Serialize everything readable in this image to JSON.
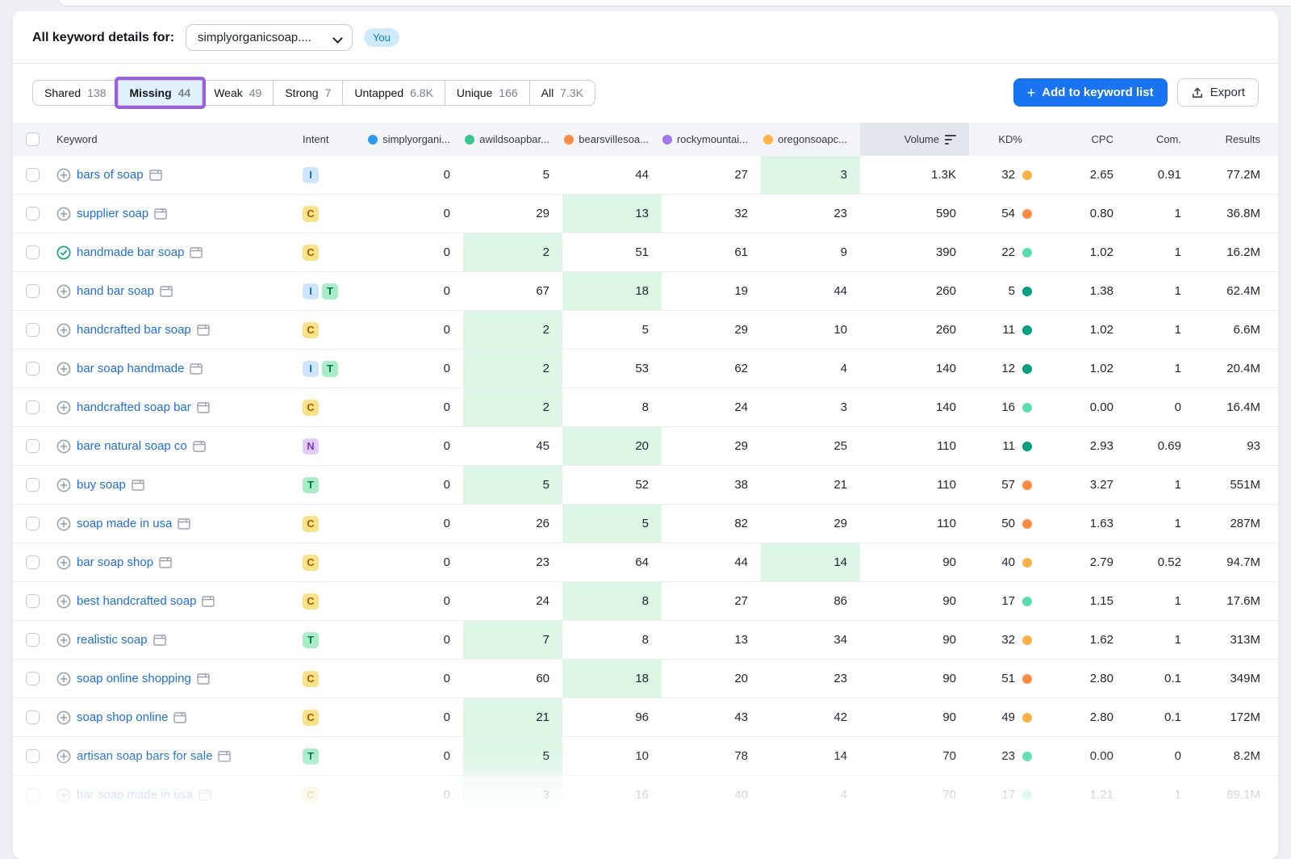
{
  "header": {
    "title": "All keyword details for:",
    "domain_selector": "simplyorganicsoap....",
    "you_badge": "You"
  },
  "tabs": [
    {
      "label": "Shared",
      "count": "138",
      "active": false,
      "annotated": false
    },
    {
      "label": "Missing",
      "count": "44",
      "active": true,
      "annotated": true
    },
    {
      "label": "Weak",
      "count": "49",
      "active": false,
      "annotated": false
    },
    {
      "label": "Strong",
      "count": "7",
      "active": false,
      "annotated": false
    },
    {
      "label": "Untapped",
      "count": "6.8K",
      "active": false,
      "annotated": false
    },
    {
      "label": "Unique",
      "count": "166",
      "active": false,
      "annotated": false
    },
    {
      "label": "All",
      "count": "7.3K",
      "active": false,
      "annotated": false
    }
  ],
  "actions": {
    "add_to_list": "Add to keyword list",
    "export": "Export"
  },
  "colors": {
    "annotation_purple": "#9d5ee2",
    "primary_button_blue": "#1974f2",
    "best_position_green_bg": "#ddf6e6",
    "link_blue": "#1f6fd9"
  },
  "table": {
    "columns": {
      "keyword": "Keyword",
      "intent": "Intent",
      "volume": "Volume",
      "kd": "KD%",
      "cpc": "CPC",
      "com": "Com.",
      "results": "Results"
    },
    "sorted_column": "Volume",
    "competitors": [
      {
        "name": "simplyorgani...",
        "color": "#2e9bf0"
      },
      {
        "name": "awildsoapbar...",
        "color": "#3dc48f"
      },
      {
        "name": "bearsvillesoa...",
        "color": "#ff8c43"
      },
      {
        "name": "rockymountai...",
        "color": "#a673ef"
      },
      {
        "name": "oregonsoapc...",
        "color": "#ffb545"
      }
    ],
    "intent_styles": {
      "I": {
        "label": "I",
        "bg": "#cfe5fb",
        "fg": "#1f6ac1"
      },
      "C": {
        "label": "C",
        "bg": "#fbe189",
        "fg": "#9a6700"
      },
      "T": {
        "label": "T",
        "bg": "#a9ecc8",
        "fg": "#00744c"
      },
      "N": {
        "label": "N",
        "bg": "#e0cdf9",
        "fg": "#7a3be0"
      }
    },
    "rows": [
      {
        "keyword": "bars of soap",
        "icon": "plus",
        "intents": [
          "I"
        ],
        "positions": [
          "0",
          "5",
          "44",
          "27",
          "3"
        ],
        "best": 4,
        "volume": "1.3K",
        "kd": "32",
        "kd_color": "#fdb247",
        "cpc": "2.65",
        "com": "0.91",
        "results": "77.2M",
        "faded": false
      },
      {
        "keyword": "supplier soap",
        "icon": "plus",
        "intents": [
          "C"
        ],
        "positions": [
          "0",
          "29",
          "13",
          "32",
          "23"
        ],
        "best": 2,
        "volume": "590",
        "kd": "54",
        "kd_color": "#ff8c43",
        "cpc": "0.80",
        "com": "1",
        "results": "36.8M",
        "faded": false
      },
      {
        "keyword": "handmade bar soap",
        "icon": "check",
        "intents": [
          "C"
        ],
        "positions": [
          "0",
          "2",
          "51",
          "61",
          "9"
        ],
        "best": 1,
        "volume": "390",
        "kd": "22",
        "kd_color": "#59ddaa",
        "cpc": "1.02",
        "com": "1",
        "results": "16.2M",
        "faded": false
      },
      {
        "keyword": "hand bar soap",
        "icon": "plus",
        "intents": [
          "I",
          "T"
        ],
        "positions": [
          "0",
          "67",
          "18",
          "19",
          "44"
        ],
        "best": 2,
        "volume": "260",
        "kd": "5",
        "kd_color": "#009f81",
        "cpc": "1.38",
        "com": "1",
        "results": "62.4M",
        "faded": false
      },
      {
        "keyword": "handcrafted bar soap",
        "icon": "plus",
        "intents": [
          "C"
        ],
        "positions": [
          "0",
          "2",
          "5",
          "29",
          "10"
        ],
        "best": 1,
        "volume": "260",
        "kd": "11",
        "kd_color": "#009f81",
        "cpc": "1.02",
        "com": "1",
        "results": "6.6M",
        "faded": false
      },
      {
        "keyword": "bar soap handmade",
        "icon": "plus",
        "intents": [
          "I",
          "T"
        ],
        "positions": [
          "0",
          "2",
          "53",
          "62",
          "4"
        ],
        "best": 1,
        "volume": "140",
        "kd": "12",
        "kd_color": "#009f81",
        "cpc": "1.02",
        "com": "1",
        "results": "20.4M",
        "faded": false
      },
      {
        "keyword": "handcrafted soap bar",
        "icon": "plus",
        "intents": [
          "C"
        ],
        "positions": [
          "0",
          "2",
          "8",
          "24",
          "3"
        ],
        "best": 1,
        "volume": "140",
        "kd": "16",
        "kd_color": "#59ddaa",
        "cpc": "0.00",
        "com": "0",
        "results": "16.4M",
        "faded": false
      },
      {
        "keyword": "bare natural soap co",
        "icon": "plus",
        "intents": [
          "N"
        ],
        "positions": [
          "0",
          "45",
          "20",
          "29",
          "25"
        ],
        "best": 2,
        "volume": "110",
        "kd": "11",
        "kd_color": "#009f81",
        "cpc": "2.93",
        "com": "0.69",
        "results": "93",
        "faded": false
      },
      {
        "keyword": "buy soap",
        "icon": "plus",
        "intents": [
          "T"
        ],
        "positions": [
          "0",
          "5",
          "52",
          "38",
          "21"
        ],
        "best": 1,
        "volume": "110",
        "kd": "57",
        "kd_color": "#ff8c43",
        "cpc": "3.27",
        "com": "1",
        "results": "551M",
        "faded": false
      },
      {
        "keyword": "soap made in usa",
        "icon": "plus",
        "intents": [
          "C"
        ],
        "positions": [
          "0",
          "26",
          "5",
          "82",
          "29"
        ],
        "best": 2,
        "volume": "110",
        "kd": "50",
        "kd_color": "#ff8c43",
        "cpc": "1.63",
        "com": "1",
        "results": "287M",
        "faded": false
      },
      {
        "keyword": "bar soap shop",
        "icon": "plus",
        "intents": [
          "C"
        ],
        "positions": [
          "0",
          "23",
          "64",
          "44",
          "14"
        ],
        "best": 4,
        "volume": "90",
        "kd": "40",
        "kd_color": "#fdb247",
        "cpc": "2.79",
        "com": "0.52",
        "results": "94.7M",
        "faded": false
      },
      {
        "keyword": "best handcrafted soap",
        "icon": "plus",
        "intents": [
          "C"
        ],
        "positions": [
          "0",
          "24",
          "8",
          "27",
          "86"
        ],
        "best": 2,
        "volume": "90",
        "kd": "17",
        "kd_color": "#59ddaa",
        "cpc": "1.15",
        "com": "1",
        "results": "17.6M",
        "faded": false
      },
      {
        "keyword": "realistic soap",
        "icon": "plus",
        "intents": [
          "T"
        ],
        "positions": [
          "0",
          "7",
          "8",
          "13",
          "34"
        ],
        "best": 1,
        "volume": "90",
        "kd": "32",
        "kd_color": "#fdb247",
        "cpc": "1.62",
        "com": "1",
        "results": "313M",
        "faded": false
      },
      {
        "keyword": "soap online shopping",
        "icon": "plus",
        "intents": [
          "C"
        ],
        "positions": [
          "0",
          "60",
          "18",
          "20",
          "23"
        ],
        "best": 2,
        "volume": "90",
        "kd": "51",
        "kd_color": "#ff8c43",
        "cpc": "2.80",
        "com": "0.1",
        "results": "349M",
        "faded": false
      },
      {
        "keyword": "soap shop online",
        "icon": "plus",
        "intents": [
          "C"
        ],
        "positions": [
          "0",
          "21",
          "96",
          "43",
          "42"
        ],
        "best": 1,
        "volume": "90",
        "kd": "49",
        "kd_color": "#fdb247",
        "cpc": "2.80",
        "com": "0.1",
        "results": "172M",
        "faded": false
      },
      {
        "keyword": "artisan soap bars for sale",
        "icon": "plus",
        "intents": [
          "T"
        ],
        "positions": [
          "0",
          "5",
          "10",
          "78",
          "14"
        ],
        "best": 1,
        "volume": "70",
        "kd": "23",
        "kd_color": "#59ddaa",
        "cpc": "0.00",
        "com": "0",
        "results": "8.2M",
        "faded": false
      },
      {
        "keyword": "bar soap made in usa",
        "icon": "plus",
        "intents": [
          "C"
        ],
        "positions": [
          "0",
          "3",
          "16",
          "40",
          "4"
        ],
        "best": 1,
        "volume": "70",
        "kd": "17",
        "kd_color": "#59ddaa",
        "cpc": "1.21",
        "com": "1",
        "results": "89.1M",
        "faded": true
      }
    ]
  }
}
